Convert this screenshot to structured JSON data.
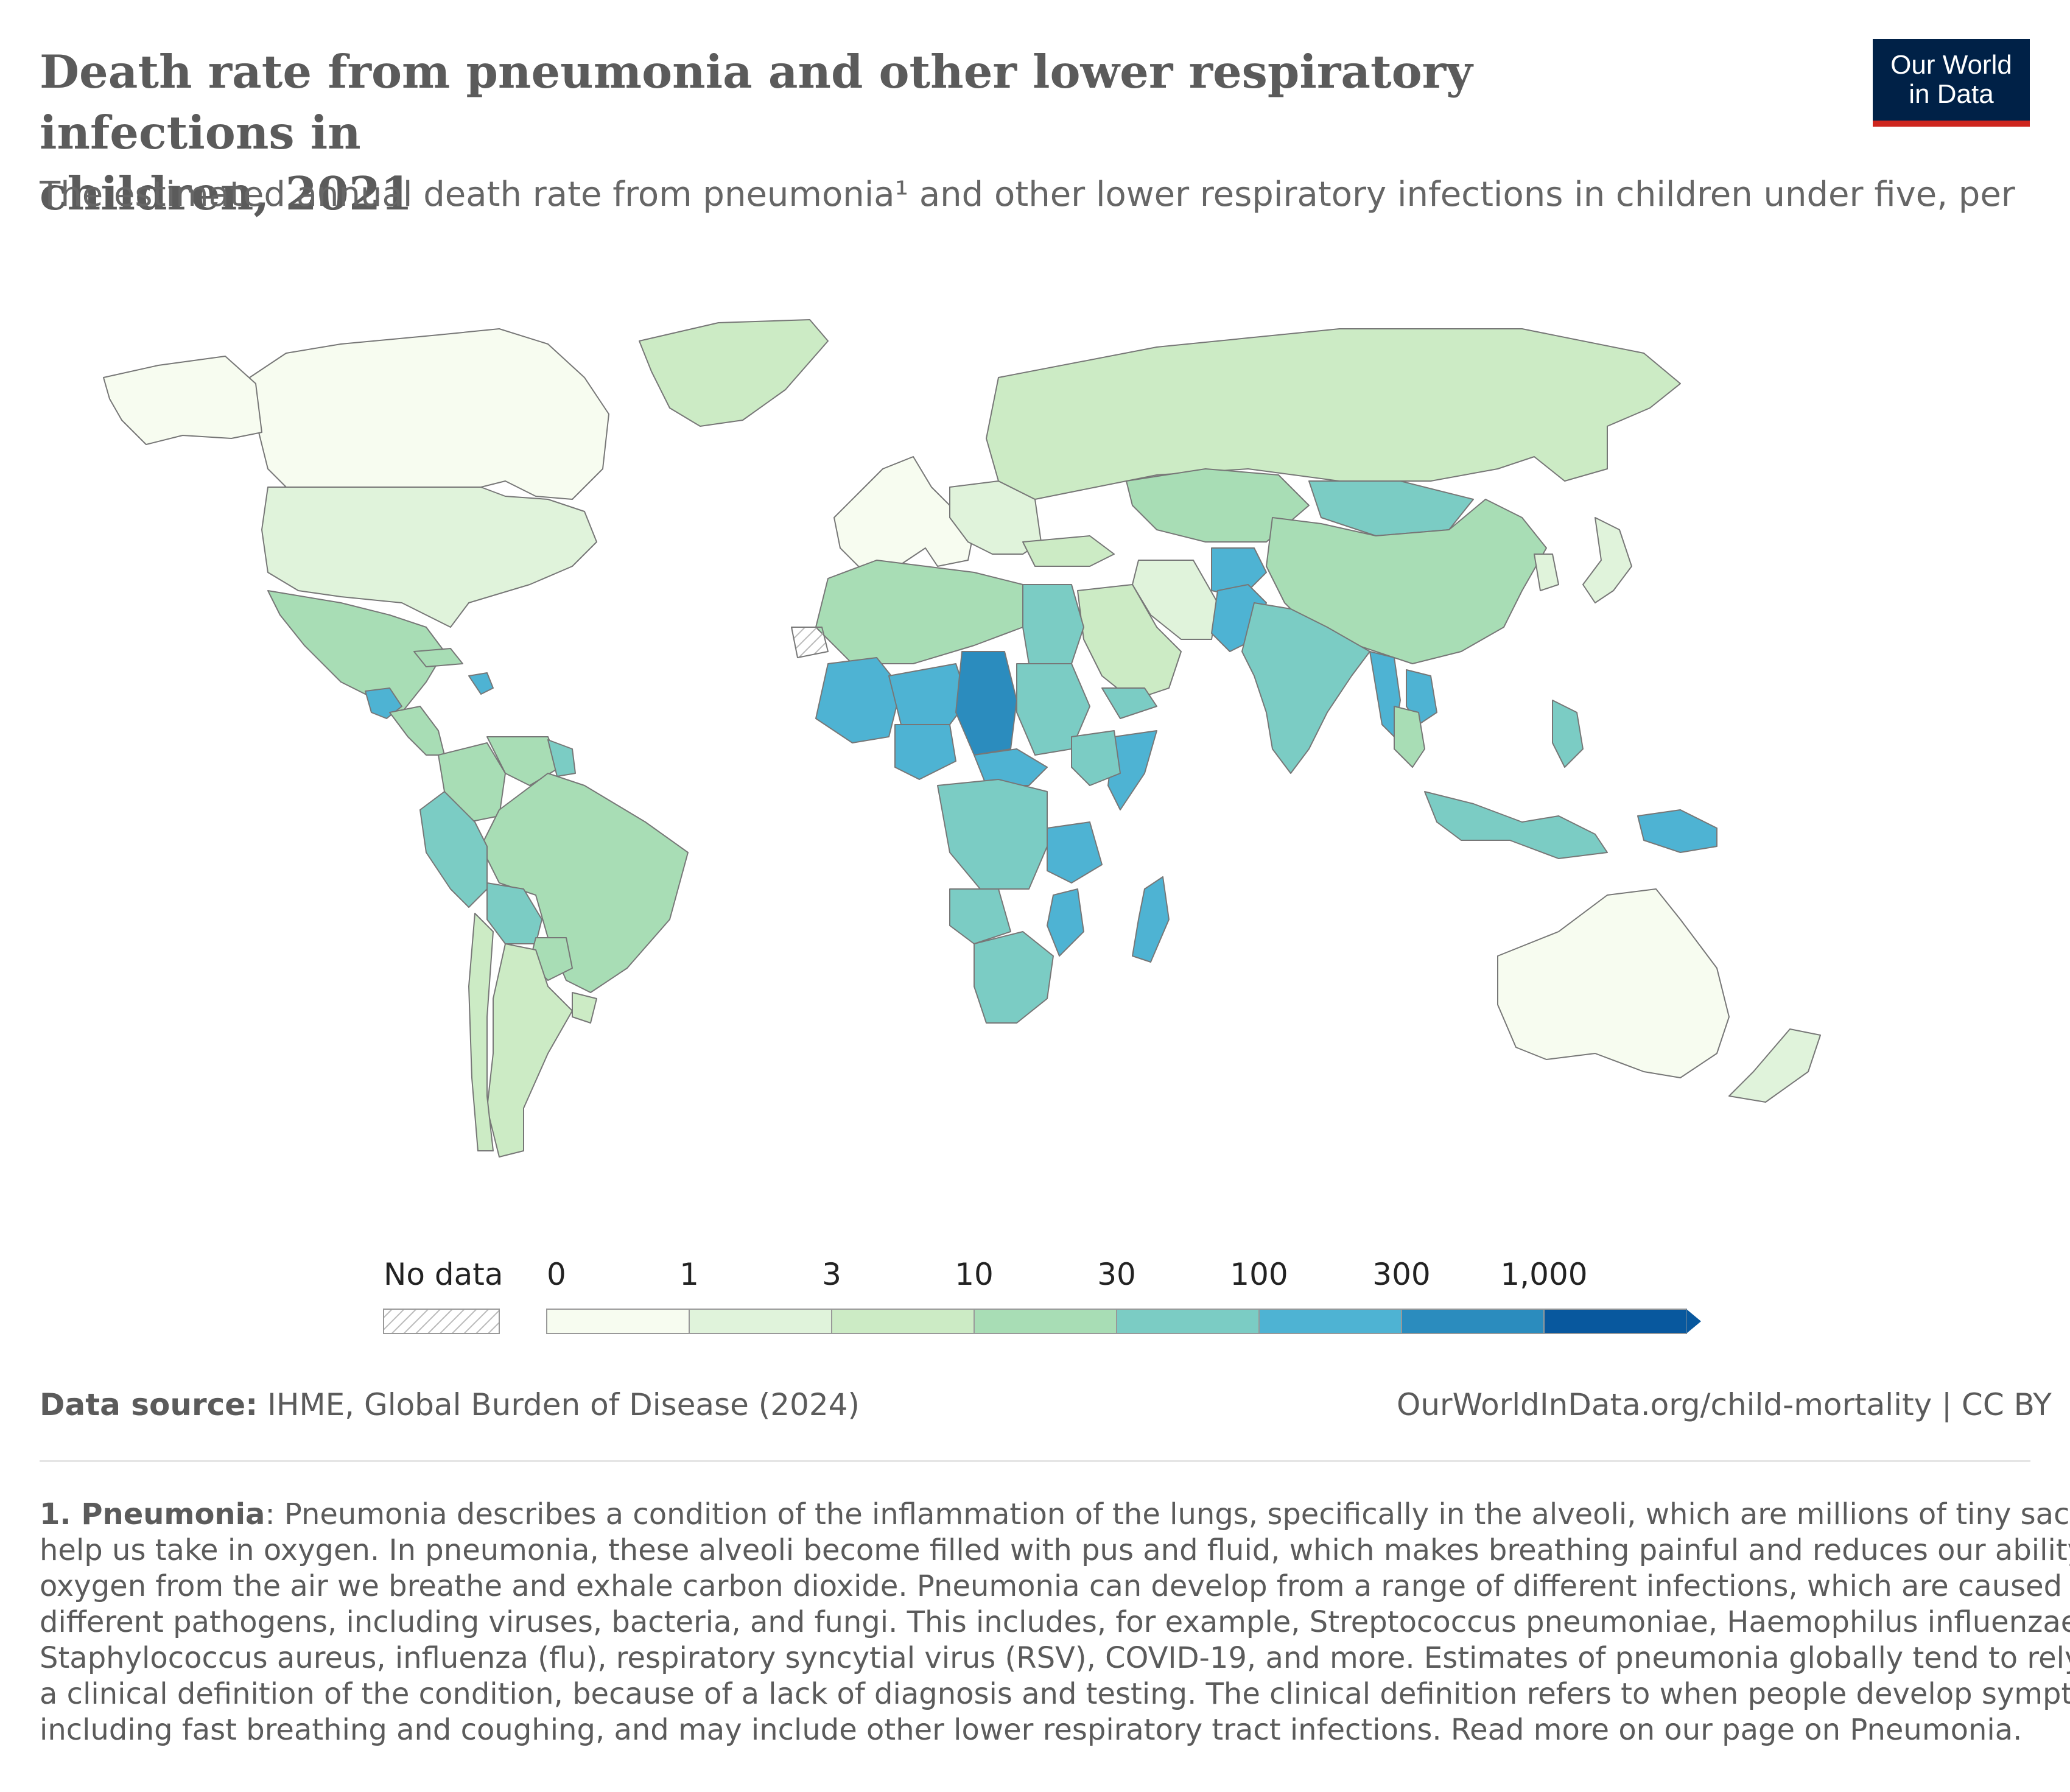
{
  "header": {
    "title_line1": "Death rate from pneumonia and other lower respiratory infections in",
    "title_line2": "children, 2021",
    "subtitle": "The estimated annual death rate from pneumonia¹ and other lower respiratory infections in children under five, per"
  },
  "logo": {
    "line1": "Our World",
    "line2": "in Data",
    "colors": {
      "background": "#002147",
      "accent": "#ce261e"
    }
  },
  "legend": {
    "no_data_label": "No data",
    "ticks": [
      "0",
      "1",
      "3",
      "10",
      "30",
      "100",
      "300",
      "1,000"
    ],
    "colors": [
      "#f7fcf0",
      "#e0f3db",
      "#ccebc5",
      "#a8ddb5",
      "#7bccc4",
      "#4eb3d3",
      "#2b8cbe",
      "#08589e"
    ],
    "no_data_color": "#cccccc"
  },
  "map_data": {
    "type": "choropleth",
    "year": "2021",
    "regions": [
      {
        "name": "Canada",
        "bin": 0
      },
      {
        "name": "Alaska",
        "bin": 0
      },
      {
        "name": "United States",
        "bin": 1
      },
      {
        "name": "Greenland",
        "bin": 2
      },
      {
        "name": "Mexico",
        "bin": 3
      },
      {
        "name": "Guatemala",
        "bin": 5
      },
      {
        "name": "Central America",
        "bin": 3
      },
      {
        "name": "Haiti",
        "bin": 5
      },
      {
        "name": "Caribbean",
        "bin": 3
      },
      {
        "name": "Colombia",
        "bin": 3
      },
      {
        "name": "Venezuela",
        "bin": 3
      },
      {
        "name": "Guyana",
        "bin": 4
      },
      {
        "name": "Brazil",
        "bin": 3
      },
      {
        "name": "Peru",
        "bin": 4
      },
      {
        "name": "Bolivia",
        "bin": 4
      },
      {
        "name": "Paraguay",
        "bin": 3
      },
      {
        "name": "Argentina",
        "bin": 2
      },
      {
        "name": "Chile",
        "bin": 2
      },
      {
        "name": "Uruguay",
        "bin": 2
      },
      {
        "name": "Western Europe",
        "bin": 0
      },
      {
        "name": "Eastern Europe",
        "bin": 1
      },
      {
        "name": "Russia",
        "bin": 2
      },
      {
        "name": "Kazakhstan",
        "bin": 3
      },
      {
        "name": "Mongolia",
        "bin": 4
      },
      {
        "name": "China",
        "bin": 3
      },
      {
        "name": "Japan",
        "bin": 1
      },
      {
        "name": "Korea",
        "bin": 1
      },
      {
        "name": "Turkey",
        "bin": 2
      },
      {
        "name": "Iran",
        "bin": 1
      },
      {
        "name": "Saudi Arabia",
        "bin": 2
      },
      {
        "name": "Yemen",
        "bin": 4
      },
      {
        "name": "Afghanistan",
        "bin": 5
      },
      {
        "name": "Pakistan",
        "bin": 5
      },
      {
        "name": "India",
        "bin": 4
      },
      {
        "name": "Myanmar",
        "bin": 5
      },
      {
        "name": "Laos",
        "bin": 5
      },
      {
        "name": "Thailand",
        "bin": 3
      },
      {
        "name": "Indonesia",
        "bin": 4
      },
      {
        "name": "Philippines",
        "bin": 4
      },
      {
        "name": "Papua New Guinea",
        "bin": 5
      },
      {
        "name": "Australia",
        "bin": 0
      },
      {
        "name": "New Zealand",
        "bin": 1
      },
      {
        "name": "North Africa",
        "bin": 3
      },
      {
        "name": "Egypt",
        "bin": 4
      },
      {
        "name": "Mali",
        "bin": 5
      },
      {
        "name": "Niger",
        "bin": 5
      },
      {
        "name": "Chad",
        "bin": 6
      },
      {
        "name": "Nigeria",
        "bin": 5
      },
      {
        "name": "Central African Republic",
        "bin": 5
      },
      {
        "name": "Sudan",
        "bin": 4
      },
      {
        "name": "Somalia",
        "bin": 5
      },
      {
        "name": "Ethiopia",
        "bin": 4
      },
      {
        "name": "Congo (DRC)",
        "bin": 4
      },
      {
        "name": "Tanzania",
        "bin": 5
      },
      {
        "name": "Angola",
        "bin": 4
      },
      {
        "name": "Mozambique",
        "bin": 5
      },
      {
        "name": "Southern Africa",
        "bin": 4
      },
      {
        "name": "Madagascar",
        "bin": 5
      },
      {
        "name": "Western Sahara",
        "bin": -1
      }
    ]
  },
  "footer": {
    "source_label": "Data source:",
    "source_text": " IHME, Global Burden of Disease (2024)",
    "url": "OurWorldInData.org/child-mortality | CC BY"
  },
  "footnote": {
    "label": "1. Pneumonia",
    "line1": ": Pneumonia describes a condition of the inflammation of the lungs, specifically in the alveoli, which are millions of tiny sacs that",
    "line2": "help us take in oxygen. In pneumonia, these alveoli become filled with pus and fluid, which makes breathing painful and reduces our ability to absorb",
    "line3": "oxygen from the air we breathe and exhale carbon dioxide. Pneumonia can develop from a range of different infections, which are caused by",
    "line4": "different pathogens, including viruses, bacteria, and fungi. This includes, for example, Streptococcus pneumoniae, Haemophilus influenzae,",
    "line5": "Staphylococcus aureus, influenza (flu), respiratory syncytial virus (RSV), COVID-19, and more. Estimates of pneumonia globally tend to rely on",
    "line6": "a clinical definition of the condition, because of a lack of diagnosis and testing. The clinical definition refers to when people develop symptoms,",
    "line7": "including fast breathing and coughing, and may include other lower respiratory tract infections. Read more on our page on Pneumonia."
  }
}
